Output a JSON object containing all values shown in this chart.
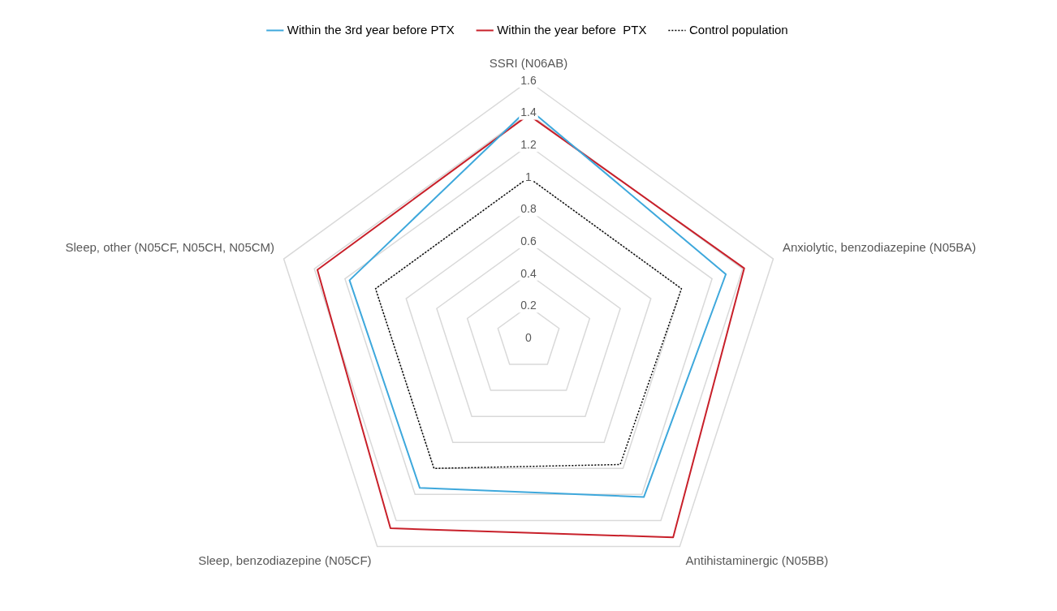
{
  "chart_data": {
    "type": "radar",
    "categories": [
      "SSRI (N06AB)",
      "Anxiolytic, benzodiazepine (N05BA)",
      "Antihistaminergic (N05BB)",
      "Sleep, benzodiazepine (N05CF)",
      "Sleep, other (N05CF, N05CH, N05CM)"
    ],
    "series": [
      {
        "name": "Within the 3rd year before PTX",
        "color": "#3ea8dc",
        "values": [
          1.43,
          1.29,
          1.22,
          1.15,
          1.17
        ]
      },
      {
        "name": "Within the year before  PTX",
        "color": "#c8202a",
        "values": [
          1.39,
          1.41,
          1.53,
          1.46,
          1.38
        ]
      },
      {
        "name": "Control population",
        "color": "#000000",
        "line_style": "dotted",
        "values": [
          1,
          1,
          0.97,
          1,
          1
        ]
      }
    ],
    "ylim": [
      0,
      1.6
    ],
    "yticks": [
      0,
      0.2,
      0.4,
      0.6,
      0.8,
      1,
      1.2,
      1.4,
      1.6
    ],
    "grid": true,
    "legend": "top",
    "marker": "none",
    "line_style": "solid"
  }
}
